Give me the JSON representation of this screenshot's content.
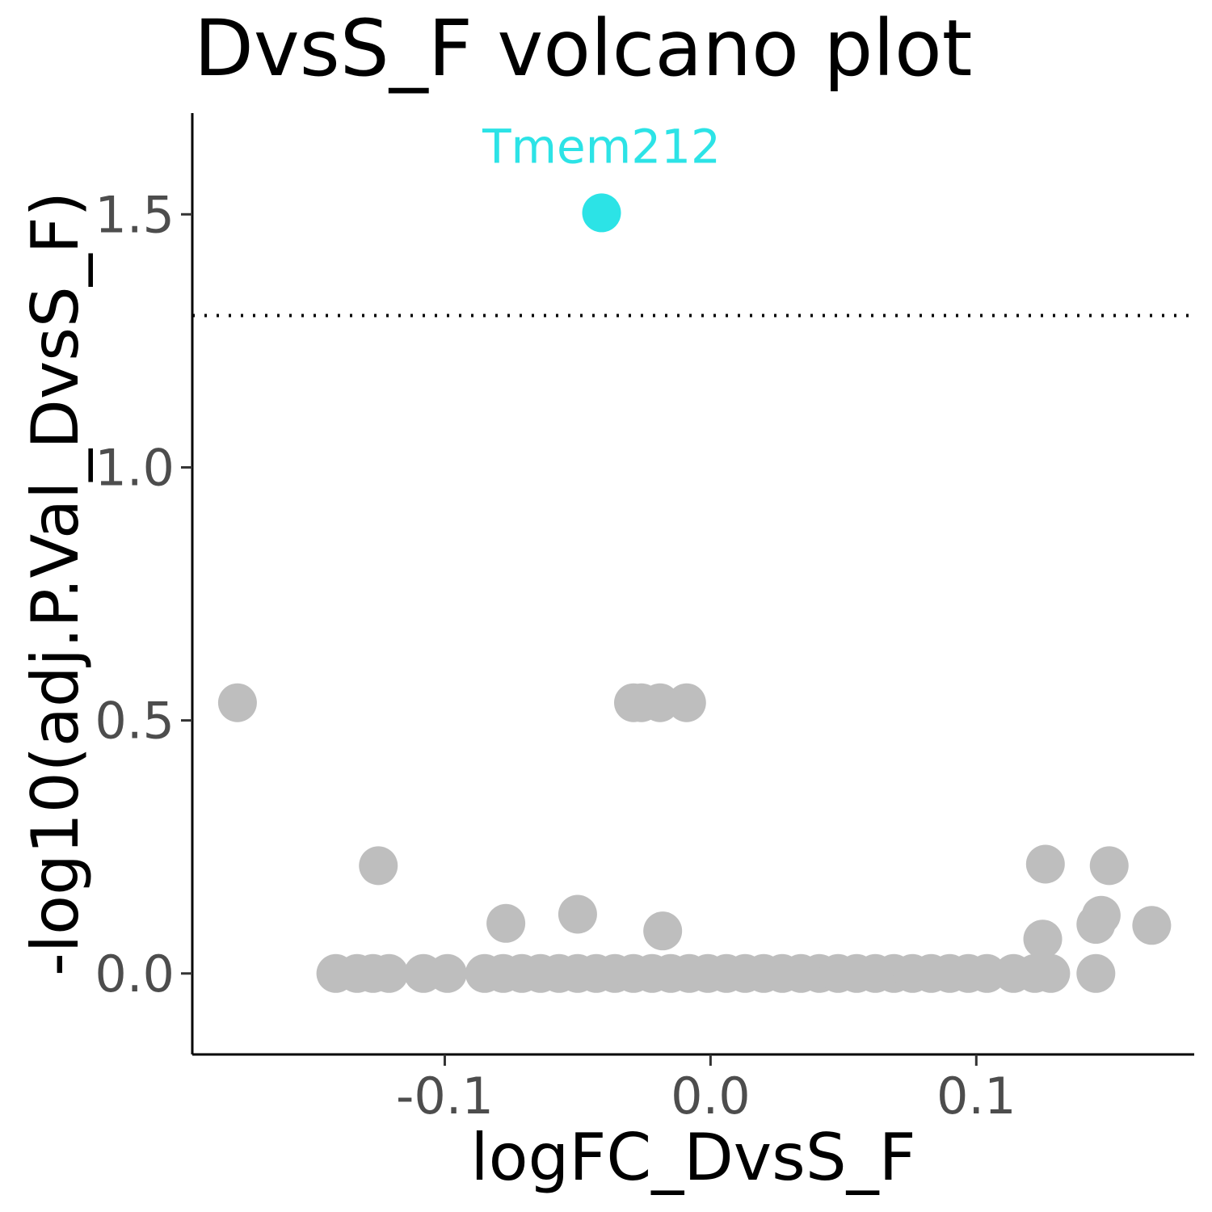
{
  "chart_data": {
    "type": "scatter",
    "title": "DvsS_F volcano plot",
    "xlabel": "logFC_DvsS_F",
    "ylabel": "-log10(adj.P.Val_DvsS_F)",
    "xlim": [
      -0.195,
      0.182
    ],
    "ylim": [
      -0.16,
      1.7
    ],
    "x_ticks": [
      -0.1,
      0.0,
      0.1
    ],
    "x_tick_labels": [
      "-0.1",
      "0.0",
      "0.1"
    ],
    "y_ticks": [
      0.0,
      0.5,
      1.0,
      1.5
    ],
    "y_tick_labels": [
      "0.0",
      "0.5",
      "1.0",
      "1.5"
    ],
    "threshold_y": 1.3,
    "grid": false,
    "colors": {
      "significant": "#2ce3e6",
      "not_significant": "#bebebe",
      "threshold_line": "#000000"
    },
    "labeled_points": [
      {
        "label": "Tmem212",
        "x": -0.041,
        "y": 1.503,
        "color": "#2ce3e6"
      }
    ],
    "points": [
      {
        "x": -0.178,
        "y": 0.535
      },
      {
        "x": -0.029,
        "y": 0.535
      },
      {
        "x": -0.026,
        "y": 0.535
      },
      {
        "x": -0.019,
        "y": 0.535
      },
      {
        "x": -0.009,
        "y": 0.535
      },
      {
        "x": -0.125,
        "y": 0.213
      },
      {
        "x": 0.126,
        "y": 0.216
      },
      {
        "x": 0.15,
        "y": 0.213
      },
      {
        "x": -0.077,
        "y": 0.099
      },
      {
        "x": -0.05,
        "y": 0.117
      },
      {
        "x": -0.018,
        "y": 0.084
      },
      {
        "x": 0.125,
        "y": 0.068
      },
      {
        "x": 0.147,
        "y": 0.115
      },
      {
        "x": 0.145,
        "y": 0.097
      },
      {
        "x": 0.166,
        "y": 0.095
      },
      {
        "x": -0.141,
        "y": 0.0
      },
      {
        "x": -0.133,
        "y": 0.0
      },
      {
        "x": -0.127,
        "y": 0.0
      },
      {
        "x": -0.121,
        "y": 0.0
      },
      {
        "x": -0.108,
        "y": 0.0
      },
      {
        "x": -0.099,
        "y": 0.0
      },
      {
        "x": -0.085,
        "y": 0.0
      },
      {
        "x": -0.078,
        "y": 0.0
      },
      {
        "x": -0.071,
        "y": 0.0
      },
      {
        "x": -0.064,
        "y": 0.0
      },
      {
        "x": -0.057,
        "y": 0.0
      },
      {
        "x": -0.05,
        "y": 0.0
      },
      {
        "x": -0.043,
        "y": 0.0
      },
      {
        "x": -0.036,
        "y": 0.0
      },
      {
        "x": -0.029,
        "y": 0.0
      },
      {
        "x": -0.022,
        "y": 0.0
      },
      {
        "x": -0.015,
        "y": 0.0
      },
      {
        "x": -0.008,
        "y": 0.0
      },
      {
        "x": -0.001,
        "y": 0.0
      },
      {
        "x": 0.006,
        "y": 0.0
      },
      {
        "x": 0.013,
        "y": 0.0
      },
      {
        "x": 0.02,
        "y": 0.0
      },
      {
        "x": 0.027,
        "y": 0.0
      },
      {
        "x": 0.034,
        "y": 0.0
      },
      {
        "x": 0.041,
        "y": 0.0
      },
      {
        "x": 0.048,
        "y": 0.0
      },
      {
        "x": 0.055,
        "y": 0.0
      },
      {
        "x": 0.062,
        "y": 0.0
      },
      {
        "x": 0.069,
        "y": 0.0
      },
      {
        "x": 0.076,
        "y": 0.0
      },
      {
        "x": 0.083,
        "y": 0.0
      },
      {
        "x": 0.09,
        "y": 0.0
      },
      {
        "x": 0.097,
        "y": 0.0
      },
      {
        "x": 0.104,
        "y": 0.0
      },
      {
        "x": 0.114,
        "y": 0.0
      },
      {
        "x": 0.122,
        "y": 0.0
      },
      {
        "x": 0.128,
        "y": 0.0
      },
      {
        "x": 0.145,
        "y": 0.0
      }
    ]
  }
}
